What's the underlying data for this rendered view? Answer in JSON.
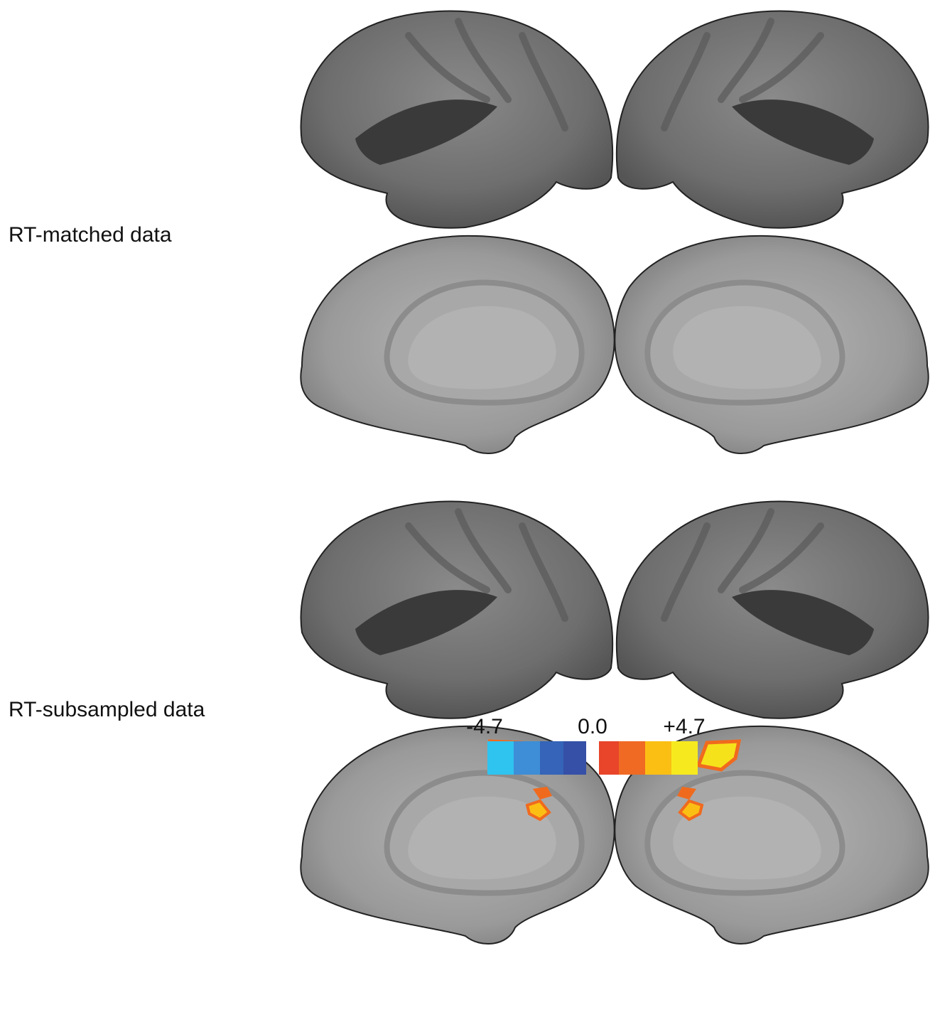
{
  "panels": [
    {
      "label": "RT-matched data"
    },
    {
      "label": "RT-subsampled data"
    }
  ],
  "colorbar": {
    "labels": [
      "-4.7",
      "0.0",
      "+4.7"
    ]
  }
}
